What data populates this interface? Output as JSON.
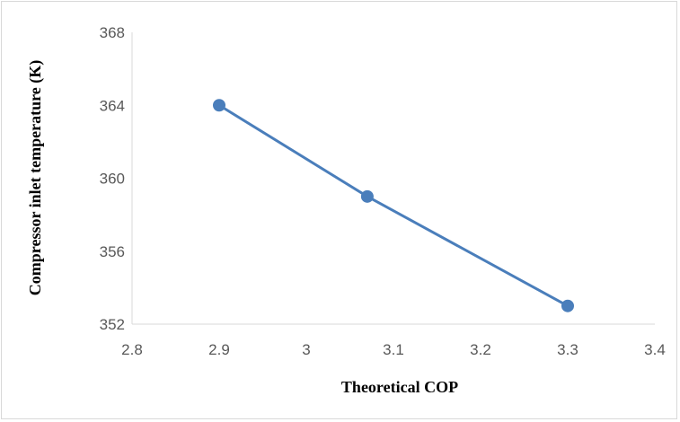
{
  "chart_data": {
    "type": "line",
    "title": "",
    "xlabel": "Theoretical COP",
    "ylabel": "Compressor inlet temperature (K)",
    "xlim": [
      2.8,
      3.4
    ],
    "ylim": [
      352,
      368
    ],
    "x_ticks": [
      2.8,
      2.9,
      3,
      3.1,
      3.2,
      3.3,
      3.4
    ],
    "x_tick_labels": [
      "2.8",
      "2.9",
      "3",
      "3.1",
      "3.2",
      "3.3",
      "3.4"
    ],
    "y_ticks": [
      352,
      356,
      360,
      364,
      368
    ],
    "y_tick_labels": [
      "352",
      "356",
      "360",
      "364",
      "368"
    ],
    "grid": false,
    "legend": "none",
    "series": [
      {
        "x": [
          2.9,
          3.07,
          3.3
        ],
        "y": [
          364,
          359,
          353
        ],
        "color": "#4a7ebb"
      }
    ]
  }
}
